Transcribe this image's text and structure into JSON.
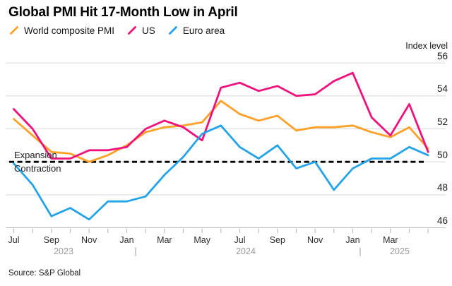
{
  "header": {
    "title": "Global PMI Hit 17-Month Low in April"
  },
  "legend": [
    {
      "label": "World composite PMI",
      "color_key": "world"
    },
    {
      "label": "US",
      "color_key": "us"
    },
    {
      "label": "Euro area",
      "color_key": "euro"
    }
  ],
  "axis": {
    "y_title": "Index level",
    "y_ticks": [
      56,
      54,
      52,
      50,
      48,
      46
    ],
    "x_tick_labels": [
      "Jul",
      "Sep",
      "Nov",
      "Jan",
      "Mar",
      "May",
      "Jul",
      "Sep",
      "Nov",
      "Jan",
      "Mar"
    ],
    "x_year_row": [
      {
        "text": "2023",
        "x": 90
      },
      {
        "text": "|",
        "x": 192
      },
      {
        "text": "2024",
        "x": 348
      },
      {
        "text": "|",
        "x": 510
      },
      {
        "text": "2025",
        "x": 566
      }
    ]
  },
  "threshold_labels": {
    "above": "Expansion",
    "below": "Contraction"
  },
  "source": "Source: S&P Global",
  "colors": {
    "world": "#FFA028",
    "us": "#F0127C",
    "euro": "#25A3E8",
    "grid": "#D8D8D8",
    "axis": "#BFBFBF",
    "dashed": "#000000"
  },
  "chart_data": {
    "type": "line",
    "title": "Global PMI Hit 17-Month Low in April",
    "ylabel": "Index level",
    "ylim": [
      46,
      56
    ],
    "y_gridlines": [
      46,
      48,
      50,
      52,
      54,
      56
    ],
    "grid": true,
    "legend_position": "top-left",
    "x": [
      "Jun 2023",
      "Jul 2023",
      "Aug 2023",
      "Sep 2023",
      "Oct 2023",
      "Nov 2023",
      "Dec 2023",
      "Jan 2024",
      "Feb 2024",
      "Mar 2024",
      "Apr 2024",
      "May 2024",
      "Jun 2024",
      "Jul 2024",
      "Aug 2024",
      "Sep 2024",
      "Oct 2024",
      "Nov 2024",
      "Dec 2024",
      "Jan 2025",
      "Feb 2025",
      "Mar 2025",
      "Apr 2025"
    ],
    "series": [
      {
        "name": "World composite PMI",
        "color_key": "world",
        "values": [
          52.6,
          51.6,
          50.6,
          50.5,
          50.0,
          50.4,
          51.0,
          51.8,
          52.1,
          52.2,
          52.4,
          53.7,
          52.9,
          52.5,
          52.8,
          51.9,
          52.1,
          52.1,
          52.2,
          51.8,
          51.5,
          52.1,
          50.8
        ]
      },
      {
        "name": "US",
        "color_key": "us",
        "values": [
          53.2,
          52.0,
          50.2,
          50.2,
          50.7,
          50.7,
          50.9,
          52.0,
          52.5,
          52.1,
          51.3,
          54.5,
          54.8,
          54.3,
          54.6,
          54.0,
          54.1,
          54.9,
          55.4,
          52.7,
          51.6,
          53.5,
          50.6
        ]
      },
      {
        "name": "Euro area",
        "color_key": "euro",
        "values": [
          49.9,
          48.6,
          46.7,
          47.2,
          46.5,
          47.6,
          47.6,
          47.9,
          49.2,
          50.3,
          51.7,
          52.2,
          50.9,
          50.2,
          51.0,
          49.6,
          50.0,
          48.3,
          49.6,
          50.2,
          50.2,
          50.9,
          50.4
        ]
      }
    ],
    "threshold": {
      "value": 50,
      "above_label": "Expansion",
      "below_label": "Contraction"
    }
  }
}
